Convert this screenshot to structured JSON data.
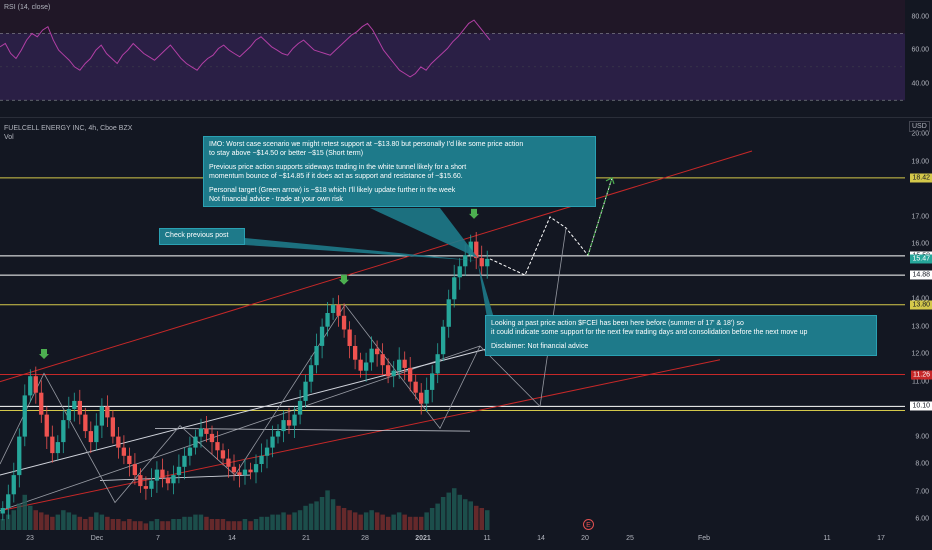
{
  "rsi": {
    "legend": "RSI (14, close)",
    "ticks": [
      80,
      60,
      40
    ],
    "upper_band": 70,
    "lower_band": 30,
    "values": [
      62,
      64,
      58,
      55,
      60,
      66,
      70,
      68,
      72,
      74,
      66,
      60,
      57,
      54,
      50,
      48,
      52,
      55,
      60,
      63,
      58,
      55,
      52,
      57,
      60,
      64,
      61,
      58,
      56,
      54,
      57,
      60,
      63,
      59,
      55,
      52,
      50,
      48,
      52,
      55,
      57,
      61,
      63,
      60,
      58,
      56,
      59,
      62,
      66,
      68,
      65,
      62,
      60,
      58,
      57,
      61,
      64,
      66,
      63,
      60,
      59,
      58,
      57,
      60,
      63,
      66,
      69,
      71,
      74,
      76,
      72,
      66,
      60,
      56,
      52,
      48,
      46,
      44,
      46,
      50,
      48,
      52,
      55,
      58,
      61,
      65,
      68,
      72,
      76,
      78,
      74,
      70,
      66
    ]
  },
  "header": {
    "title": "FUELCELL ENERGY INC, 4h, Cboe BZX",
    "vol_label": "Vol",
    "currency": "USD"
  },
  "price_axis": {
    "ticks": [
      20.0,
      19.0,
      17.0,
      16.0,
      14.0,
      13.0,
      12.0,
      11.0,
      10.0,
      9.0,
      8.0,
      7.0,
      6.0
    ],
    "badges": [
      {
        "label": "18.42",
        "value": 18.42,
        "color": "#d4c84a"
      },
      {
        "label": "15.58",
        "value": 15.58,
        "color": "#ffffff"
      },
      {
        "label": "15.47",
        "value": 15.47,
        "color": "#26a69a"
      },
      {
        "label": "14.88",
        "value": 14.88,
        "color": "#ffffff"
      },
      {
        "label": "13.80",
        "value": 13.8,
        "color": "#d4c84a"
      },
      {
        "label": "11.26",
        "value": 11.26,
        "color": "#c62828"
      },
      {
        "label": "10.10",
        "value": 10.1,
        "color": "#ffffff"
      }
    ]
  },
  "time_axis": {
    "ticks": [
      "23",
      "Dec",
      "7",
      "14",
      "21",
      "28",
      "2021",
      "11",
      "14",
      "20",
      "25",
      "Feb",
      "11",
      "17"
    ]
  },
  "annotations": {
    "worst_case": {
      "lines": [
        "IMO: Worst case scenario we might retest support at ~$13.80 but personally I'd like some price action",
        "to stay above ~$14.50 or better ~$15 (Short term)",
        "",
        "Previous price action supports sideways trading in the white tunnel likely for a short",
        "momentum bounce of ~$14.85 if it does act as support and resistance of ~$15.60.",
        "",
        "Personal target (Green arrow)  is ~$18 which I'll likely update further in the week",
        "Not financial advice - trade at your own risk"
      ]
    },
    "check_previous": "Check previous post",
    "past_action": {
      "lines": [
        "Looking at past price action $FCEl has been here before (summer of 17' & 18') so",
        "it could indicate some support for the next few trading days and consolidation before the next move up",
        "",
        "Disclaimer: Not financial advice"
      ]
    },
    "earnings_marker": "E"
  },
  "chart_data": {
    "type": "candlestick",
    "title": "FUELCELL ENERGY INC, 4h, Cboe BZX",
    "ylabel": "USD",
    "ylim": [
      5.6,
      20.6
    ],
    "x_ticks": [
      "23",
      "Dec",
      "7",
      "14",
      "21",
      "28",
      "2021",
      "11",
      "14",
      "20",
      "25",
      "Feb",
      "11",
      "17"
    ],
    "close_series": [
      6.4,
      6.9,
      7.6,
      9.0,
      10.5,
      11.2,
      10.6,
      9.8,
      9.0,
      8.4,
      8.8,
      9.6,
      10.0,
      10.3,
      9.8,
      9.2,
      8.8,
      9.4,
      10.1,
      9.7,
      9.0,
      8.6,
      8.3,
      8.0,
      7.6,
      7.2,
      7.1,
      7.4,
      7.8,
      7.5,
      7.3,
      7.6,
      7.9,
      8.3,
      8.6,
      9.0,
      9.3,
      9.1,
      8.8,
      8.5,
      8.2,
      7.9,
      7.7,
      7.6,
      7.8,
      7.7,
      8.0,
      8.3,
      8.6,
      9.0,
      9.2,
      9.6,
      9.4,
      9.8,
      10.3,
      11.0,
      11.6,
      12.3,
      13.0,
      13.5,
      13.8,
      13.4,
      12.9,
      12.3,
      11.8,
      11.4,
      11.7,
      12.2,
      12.0,
      11.6,
      11.2,
      11.4,
      11.8,
      11.5,
      11.0,
      10.6,
      10.2,
      10.7,
      11.3,
      12.0,
      13.0,
      14.0,
      14.8,
      15.2,
      15.6,
      16.1,
      15.5,
      15.2,
      15.47
    ],
    "projection_path": [
      [
        10.1,
        "14"
      ],
      [
        16.6,
        "20"
      ],
      [
        15.6,
        "20"
      ],
      [
        18.42,
        "25"
      ]
    ],
    "levels": [
      18.42,
      15.58,
      14.88,
      13.8,
      11.26,
      10.1
    ],
    "volume": [
      0.5,
      0.7,
      0.9,
      1.2,
      1.6,
      1.1,
      0.9,
      0.8,
      0.7,
      0.6,
      0.7,
      0.9,
      0.8,
      0.7,
      0.6,
      0.5,
      0.6,
      0.8,
      0.7,
      0.6,
      0.5,
      0.5,
      0.4,
      0.5,
      0.4,
      0.4,
      0.3,
      0.4,
      0.5,
      0.4,
      0.4,
      0.5,
      0.5,
      0.6,
      0.6,
      0.7,
      0.7,
      0.6,
      0.5,
      0.5,
      0.5,
      0.4,
      0.4,
      0.4,
      0.5,
      0.4,
      0.5,
      0.6,
      0.6,
      0.7,
      0.7,
      0.8,
      0.7,
      0.8,
      0.9,
      1.1,
      1.2,
      1.3,
      1.5,
      1.8,
      1.4,
      1.1,
      1.0,
      0.9,
      0.8,
      0.7,
      0.8,
      0.9,
      0.8,
      0.7,
      0.6,
      0.7,
      0.8,
      0.7,
      0.6,
      0.6,
      0.6,
      0.8,
      1.0,
      1.2,
      1.5,
      1.7,
      1.9,
      1.6,
      1.4,
      1.3,
      1.1,
      1.0,
      0.9
    ]
  }
}
